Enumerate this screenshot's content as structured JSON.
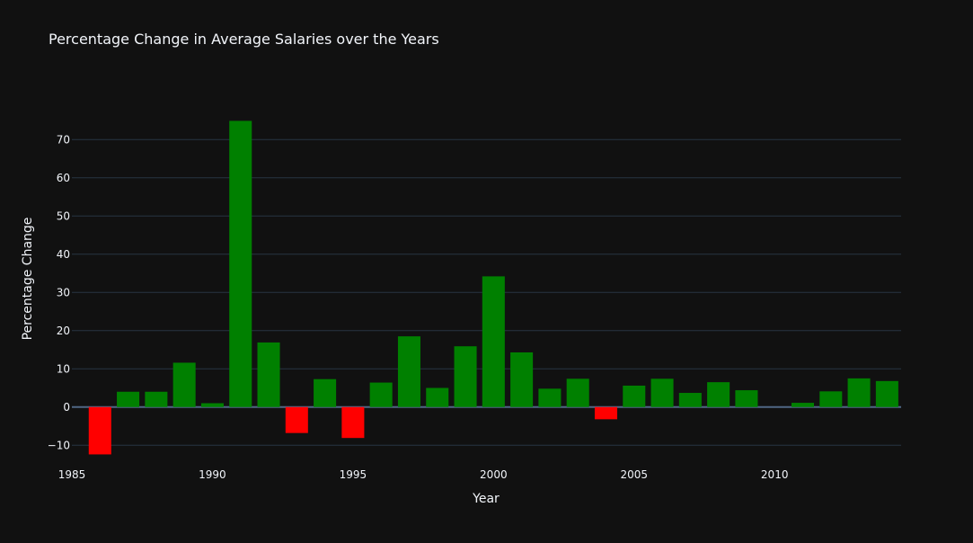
{
  "chart_data": {
    "type": "bar",
    "title": "Percentage Change in Average Salaries over the Years",
    "xlabel": "Year",
    "ylabel": "Percentage Change",
    "xlim": [
      1985,
      2014.5
    ],
    "ylim": [
      -13,
      83
    ],
    "x_ticks": [
      1985,
      1990,
      1995,
      2000,
      2005,
      2010
    ],
    "y_ticks": [
      -10,
      0,
      10,
      20,
      30,
      40,
      50,
      60,
      70
    ],
    "grid": true,
    "legend": "none",
    "colors": {
      "positive": "#008000",
      "negative": "#ff0000",
      "background": "#111111",
      "grid": "#283442",
      "text": "#f2f5fa"
    },
    "series": [
      {
        "x": [
          1986,
          1987,
          1988,
          1989,
          1990,
          1991,
          1992,
          1993,
          1994,
          1995,
          1996,
          1997,
          1998,
          1999,
          2000,
          2001,
          2002,
          2003,
          2004,
          2005,
          2006,
          2007,
          2008,
          2009,
          2010,
          2011,
          2012,
          2013,
          2014
        ],
        "values": [
          -12.4,
          4.0,
          4.0,
          11.6,
          1.0,
          74.9,
          16.9,
          -6.8,
          7.3,
          -8.1,
          6.4,
          18.5,
          5.0,
          15.9,
          34.2,
          14.3,
          4.8,
          7.4,
          -3.2,
          5.6,
          7.4,
          3.7,
          6.5,
          4.4,
          0.0,
          1.1,
          4.1,
          7.5,
          6.8
        ]
      }
    ]
  }
}
